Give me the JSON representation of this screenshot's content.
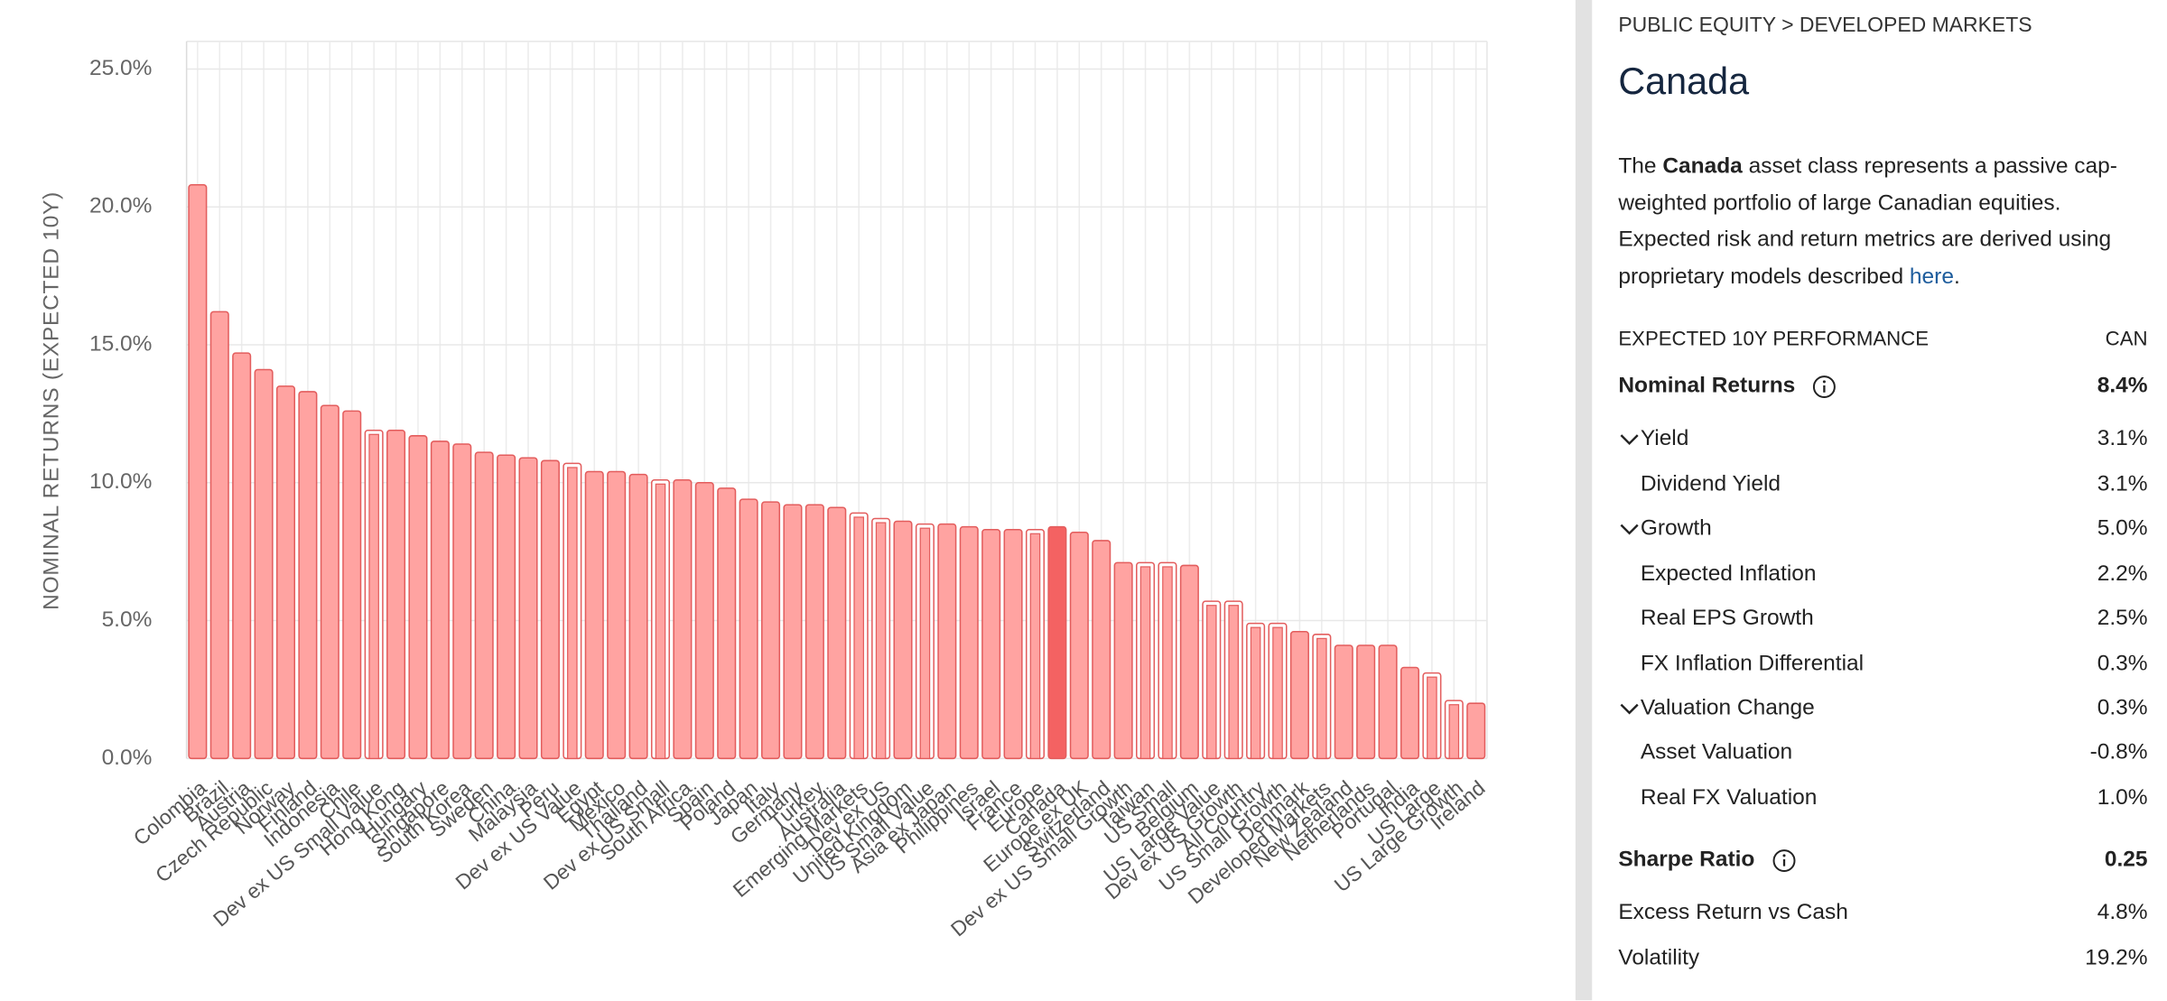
{
  "chart_data": {
    "type": "bar",
    "y_label": "NOMINAL RETURNS (EXPECTED 10Y)",
    "categories": [
      "Colombia",
      "Brazil",
      "Austria",
      "Czech Republic",
      "Norway",
      "Finland",
      "Indonesia",
      "Chile",
      "Dev ex US Small Value",
      "Hong Kong",
      "Hungary",
      "Singapore",
      "South Korea",
      "Sweden",
      "China",
      "Malaysia",
      "Peru",
      "Dev ex US Value",
      "Egypt",
      "Mexico",
      "Thailand",
      "Dev ex US Small",
      "South Africa",
      "Spain",
      "Poland",
      "Japan",
      "Italy",
      "Germany",
      "Turkey",
      "Australia",
      "Emerging Markets",
      "Dev ex US",
      "United Kingdom",
      "US Small Value",
      "Asia ex Japan",
      "Philippines",
      "Israel",
      "France",
      "Europe",
      "Canada",
      "Europe ex UK",
      "Switzerland",
      "Dev ex US Small Growth",
      "Taiwan",
      "US Small",
      "Belgium",
      "US Large Value",
      "Dev ex US Growth",
      "All Country",
      "US Small Growth",
      "Denmark",
      "Developed Markets",
      "New Zealand",
      "Netherlands",
      "Portugal",
      "India",
      "US Large",
      "US Large Growth",
      "Ireland"
    ],
    "values": [
      20.8,
      16.2,
      14.7,
      14.1,
      13.5,
      13.3,
      12.8,
      12.6,
      11.9,
      11.9,
      11.7,
      11.5,
      11.4,
      11.1,
      11.0,
      10.9,
      10.8,
      10.7,
      10.4,
      10.4,
      10.3,
      10.1,
      10.1,
      10.0,
      9.8,
      9.4,
      9.3,
      9.2,
      9.2,
      9.1,
      8.9,
      8.7,
      8.6,
      8.5,
      8.5,
      8.4,
      8.3,
      8.3,
      8.3,
      8.4,
      8.2,
      7.9,
      7.1,
      7.1,
      7.1,
      7.0,
      5.7,
      5.7,
      4.9,
      4.9,
      4.6,
      4.5,
      4.1,
      4.1,
      4.1,
      3.3,
      3.1,
      2.1,
      2.0
    ],
    "bar_styles": [
      "solid",
      "solid",
      "solid",
      "solid",
      "solid",
      "solid",
      "solid",
      "solid",
      "outline",
      "solid",
      "solid",
      "solid",
      "solid",
      "solid",
      "solid",
      "solid",
      "solid",
      "outline",
      "solid",
      "solid",
      "solid",
      "outline",
      "solid",
      "solid",
      "solid",
      "solid",
      "solid",
      "solid",
      "solid",
      "solid",
      "outline",
      "outline",
      "solid",
      "outline",
      "solid",
      "solid",
      "solid",
      "solid",
      "outline",
      "selected",
      "solid",
      "solid",
      "solid",
      "outline",
      "outline",
      "solid",
      "outline",
      "outline",
      "outline",
      "outline",
      "solid",
      "outline",
      "solid",
      "solid",
      "solid",
      "solid",
      "outline",
      "outline",
      "solid"
    ],
    "color": "#ffa3a1",
    "edge_color": "#e35d5d",
    "selected_color": "#f46262",
    "ylim": [
      0,
      26
    ],
    "yticks": [
      {
        "value": 0,
        "label": "0.0%"
      },
      {
        "value": 5,
        "label": "5.0%"
      },
      {
        "value": 10,
        "label": "10.0%"
      },
      {
        "value": 15,
        "label": "15.0%"
      },
      {
        "value": 20,
        "label": "20.0%"
      },
      {
        "value": 25,
        "label": "25.0%"
      }
    ],
    "grid": true
  },
  "panel": {
    "breadcrumb": "PUBLIC EQUITY > DEVELOPED MARKETS",
    "title": "Canada",
    "description": [
      "The ",
      "Canada",
      " asset class represents a passive cap-weighted portfolio of large Canadian equities. Expected risk and return metrics are derived using proprietary models described ",
      "here",
      "."
    ],
    "table_header": [
      "EXPECTED 10Y PERFORMANCE",
      "CAN"
    ],
    "rows": [
      {
        "label": "Nominal Returns",
        "value": "8.4%",
        "kind": "main",
        "info": true
      },
      {
        "label": "Yield",
        "value": "3.1%",
        "kind": "group"
      },
      {
        "label": "Dividend Yield",
        "value": "3.1%",
        "kind": "item"
      },
      {
        "label": "Growth",
        "value": "5.0%",
        "kind": "group"
      },
      {
        "label": "Expected Inflation",
        "value": "2.2%",
        "kind": "item"
      },
      {
        "label": "Real EPS Growth",
        "value": "2.5%",
        "kind": "item"
      },
      {
        "label": "FX Inflation Differential",
        "value": "0.3%",
        "kind": "item"
      },
      {
        "label": "Valuation Change",
        "value": "0.3%",
        "kind": "group"
      },
      {
        "label": "Asset Valuation",
        "value": "-0.8%",
        "kind": "item"
      },
      {
        "label": "Real FX Valuation",
        "value": "1.0%",
        "kind": "item"
      },
      {
        "label": "Sharpe Ratio",
        "value": "0.25",
        "kind": "main",
        "info": true
      },
      {
        "label": "Excess Return vs Cash",
        "value": "4.8%",
        "kind": "plain"
      },
      {
        "label": "Volatility",
        "value": "19.2%",
        "kind": "plain"
      }
    ]
  }
}
